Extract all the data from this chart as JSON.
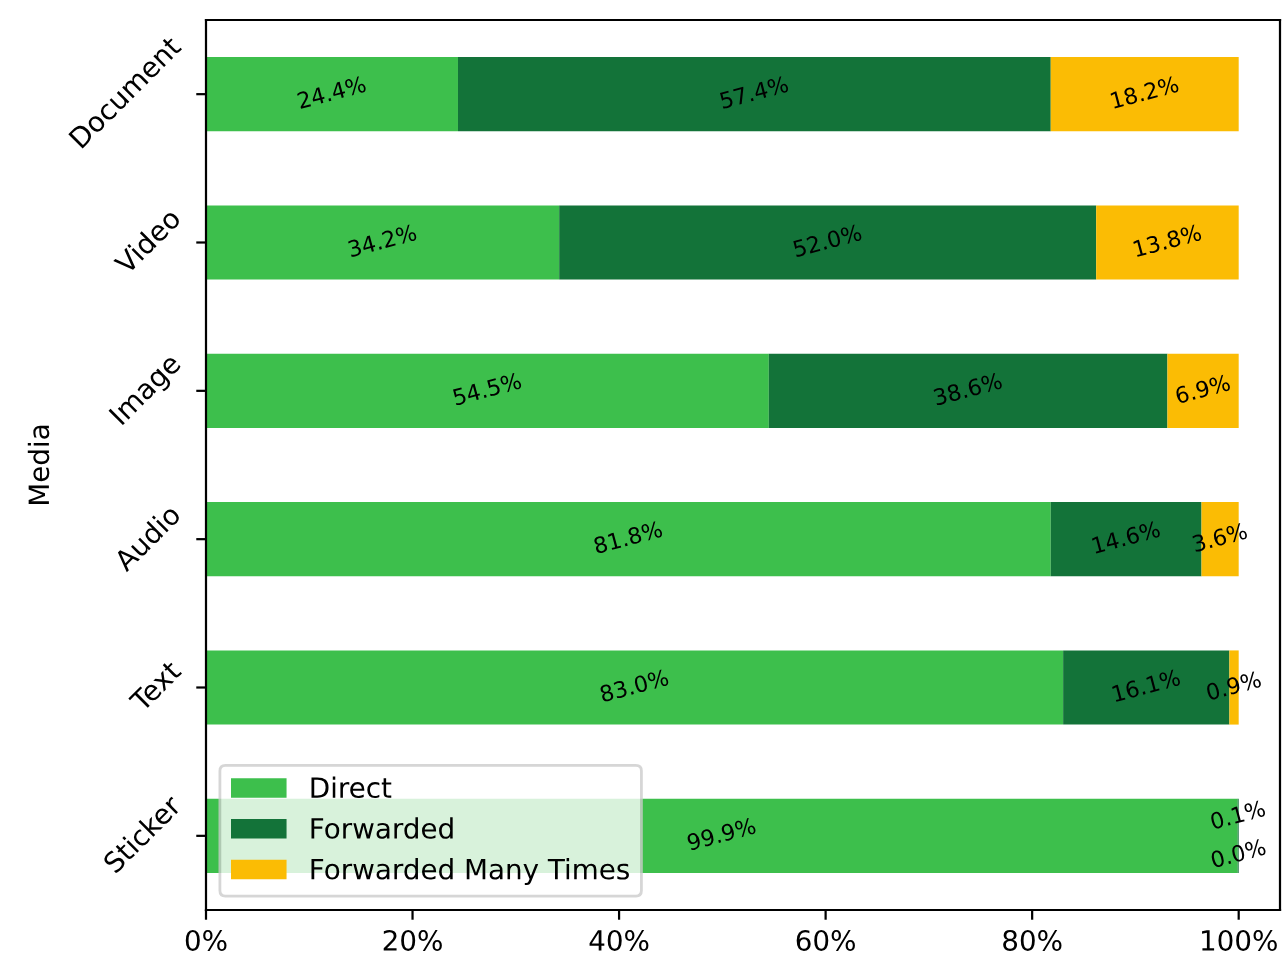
{
  "chart_data": {
    "type": "bar",
    "orientation": "horizontal",
    "stacked": true,
    "ylabel": "Media",
    "categories": [
      "Document",
      "Video",
      "Image",
      "Audio",
      "Text",
      "Sticker"
    ],
    "series": [
      {
        "name": "Direct",
        "color": "#3dbf4c",
        "values": [
          24.4,
          34.2,
          54.5,
          81.8,
          83.0,
          99.9
        ],
        "value_labels": [
          "24.4%",
          "34.2%",
          "54.5%",
          "81.8%",
          "83.0%",
          "99.9%"
        ]
      },
      {
        "name": "Forwarded",
        "color": "#137339",
        "values": [
          57.4,
          52.0,
          38.6,
          14.6,
          16.1,
          0.1
        ],
        "value_labels": [
          "57.4%",
          "52.0%",
          "38.6%",
          "14.6%",
          "16.1%",
          "0.1%"
        ]
      },
      {
        "name": "Forwarded Many Times",
        "color": "#fbbc04",
        "values": [
          18.2,
          13.8,
          6.9,
          3.6,
          0.9,
          0.0
        ],
        "value_labels": [
          "18.2%",
          "13.8%",
          "6.9%",
          "3.6%",
          "0.9%",
          "0.0%"
        ]
      }
    ],
    "xlim": [
      0,
      104
    ],
    "xticks": [
      {
        "value": 0,
        "label": "0%"
      },
      {
        "value": 20,
        "label": "20%"
      },
      {
        "value": 40,
        "label": "40%"
      },
      {
        "value": 60,
        "label": "60%"
      },
      {
        "value": 80,
        "label": "80%"
      },
      {
        "value": 100,
        "label": "100%"
      }
    ],
    "legend": "bottom left",
    "grid": false
  }
}
